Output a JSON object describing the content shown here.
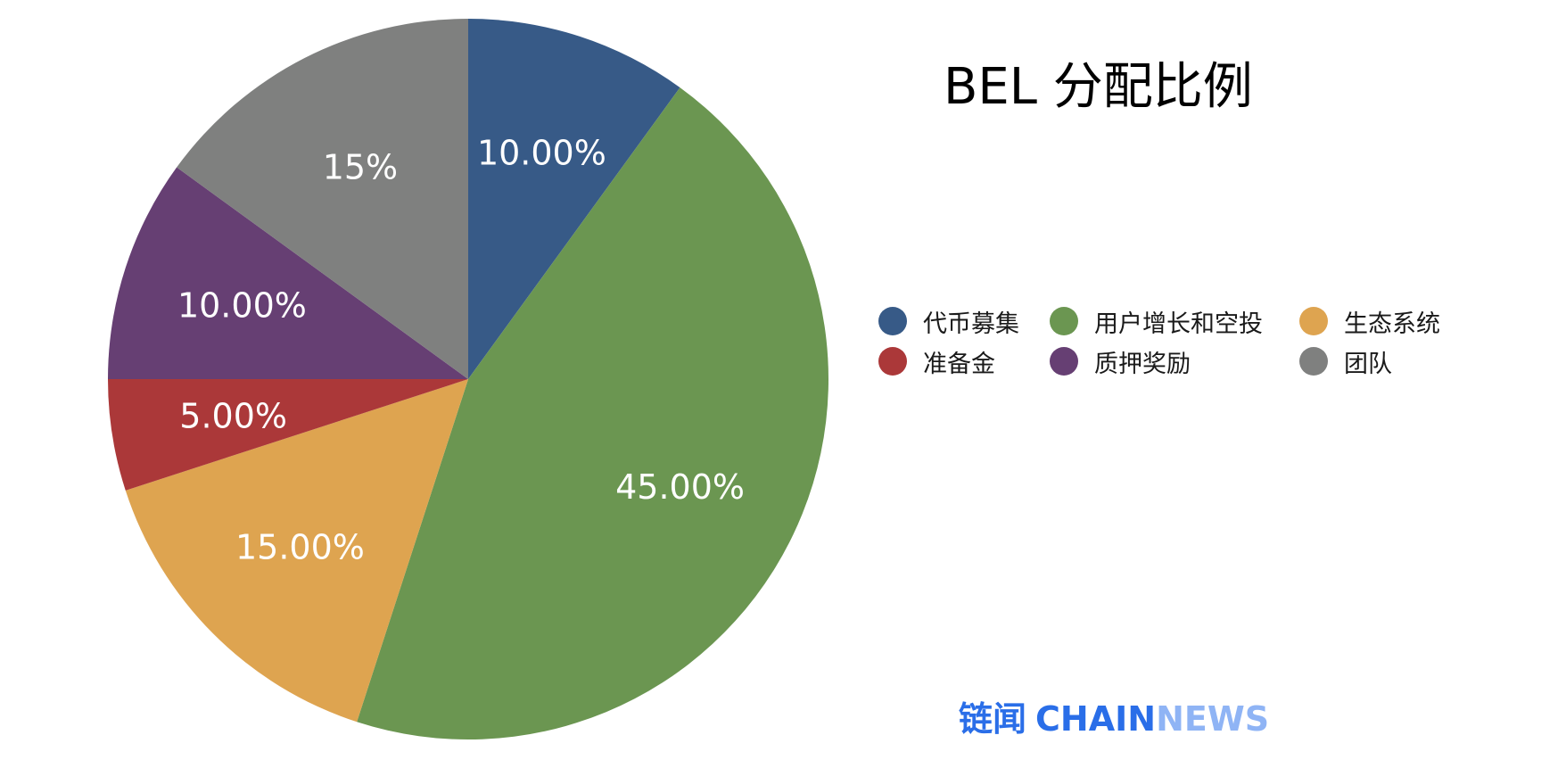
{
  "chart_data": {
    "type": "pie",
    "title": "BEL 分配比例",
    "start_angle_deg": -90,
    "direction": "clockwise",
    "legend_position": "right",
    "slices": [
      {
        "name": "代币募集",
        "value": 10,
        "label": "10.00%",
        "color": "#375a87"
      },
      {
        "name": "用户增长和空投",
        "value": 45,
        "label": "45.00%",
        "color": "#6b9651"
      },
      {
        "name": "生态系统",
        "value": 15,
        "label": "15.00%",
        "color": "#dea450"
      },
      {
        "name": "准备金",
        "value": 5,
        "label": "5.00%",
        "color": "#ab3839"
      },
      {
        "name": "质押奖励",
        "value": 10,
        "label": "10.00%",
        "color": "#663f73"
      },
      {
        "name": "团队",
        "value": 15,
        "label": "15%",
        "color": "#7f807f"
      }
    ],
    "legend": [
      {
        "name": "代币募集",
        "color": "#375a87"
      },
      {
        "name": "用户增长和空投",
        "color": "#6b9651"
      },
      {
        "name": "生态系统",
        "color": "#dea450"
      },
      {
        "name": "准备金",
        "color": "#ab3839"
      },
      {
        "name": "质押奖励",
        "color": "#663f73"
      },
      {
        "name": "团队",
        "color": "#7f807f"
      }
    ]
  },
  "brand": {
    "cn": "链闻",
    "chain": "CHAIN",
    "news": "NEWS"
  }
}
